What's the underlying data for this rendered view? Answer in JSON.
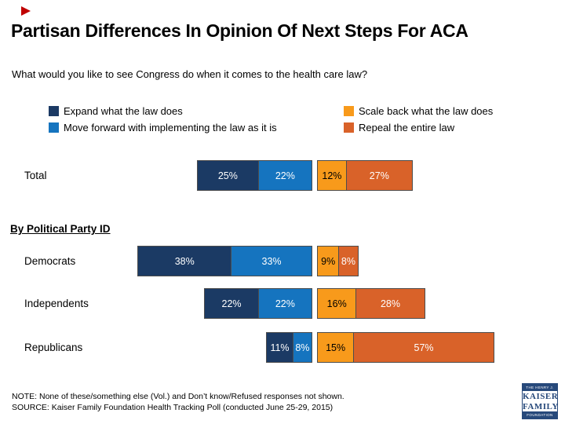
{
  "page": {
    "title": "Partisan Differences In Opinion Of Next Steps For ACA",
    "subtitle": "What would you like to see Congress do when it comes to the health care law?",
    "section_label": "By Political Party ID"
  },
  "legend": {
    "items": [
      {
        "label": "Expand what the law does",
        "color": "#1b3a64"
      },
      {
        "label": "Move forward with implementing the law as it is",
        "color": "#1574bf"
      },
      {
        "label": "Scale back what the law does",
        "color": "#f89a1b"
      },
      {
        "label": "Repeal the entire law",
        "color": "#d96229"
      }
    ]
  },
  "chart_data": {
    "type": "bar",
    "variant": "horizontal-diverging-stacked",
    "unit": "%",
    "series": [
      {
        "name": "Expand what the law does",
        "color": "#1b3a64",
        "side": "left",
        "label_color": "#ffffff"
      },
      {
        "name": "Move forward with implementing the law as it is",
        "color": "#1574bf",
        "side": "left",
        "label_color": "#ffffff"
      },
      {
        "name": "Scale back what the law does",
        "color": "#f89a1b",
        "side": "right",
        "label_color": "#000000"
      },
      {
        "name": "Repeal the entire law",
        "color": "#d96229",
        "side": "right",
        "label_color": "#ffffff"
      }
    ],
    "rows": [
      {
        "category": "Total",
        "values": [
          25,
          22,
          12,
          27
        ],
        "labels": [
          "25%",
          "22%",
          "12%",
          "27%"
        ]
      },
      {
        "category": "Democrats",
        "values": [
          38,
          33,
          9,
          8
        ],
        "labels": [
          "38%",
          "33%",
          "9%",
          "8%"
        ]
      },
      {
        "category": "Independents",
        "values": [
          22,
          22,
          16,
          28
        ],
        "labels": [
          "22%",
          "22%",
          "16%",
          "28%"
        ]
      },
      {
        "category": "Republicans",
        "values": [
          11,
          8,
          15,
          57
        ],
        "labels": [
          "11%",
          "8%",
          "15%",
          "57%"
        ]
      }
    ],
    "legend_position": "top",
    "grid": false,
    "axis_labels_shown": false
  },
  "notes": {
    "note": "NOTE: None of these/something else (Vol.) and Don’t know/Refused responses not shown.",
    "source": "SOURCE: Kaiser Family Foundation Health Tracking Poll (conducted June 25-29, 2015)"
  },
  "logo": {
    "line1": "THE HENRY J.",
    "line2": "KAISER",
    "line3": "FAMILY",
    "line4": "FOUNDATION"
  }
}
